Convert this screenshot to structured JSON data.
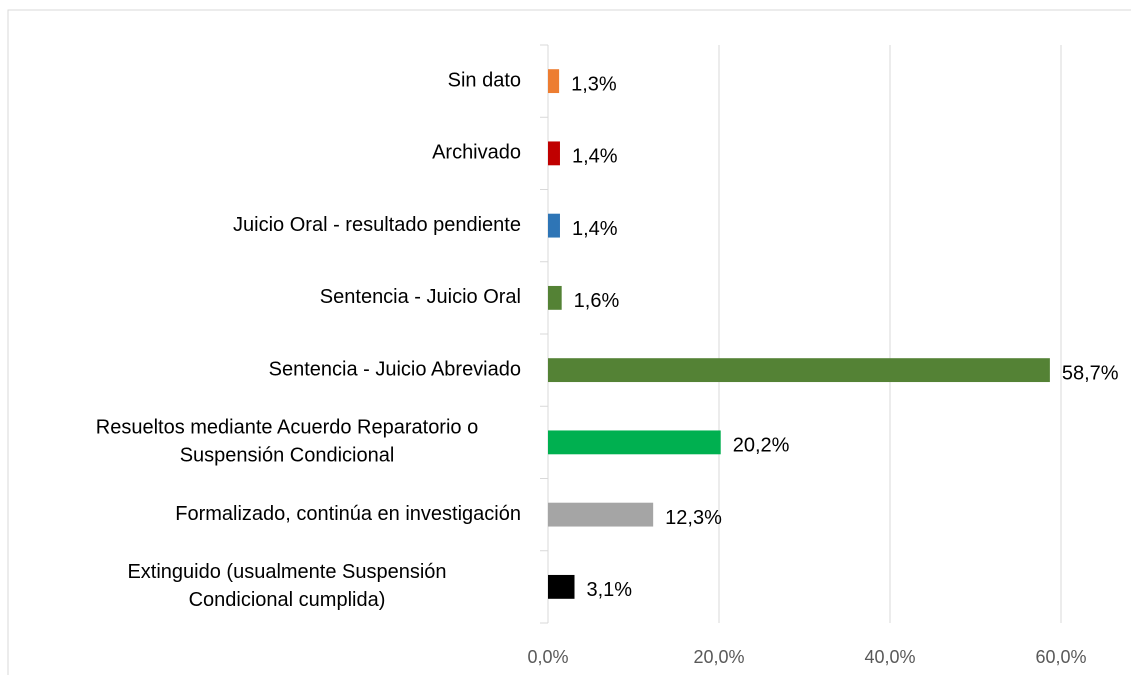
{
  "chart_data": {
    "type": "hbar",
    "categories": [
      "Sin dato",
      "Archivado",
      "Juicio Oral - resultado pendiente",
      "Sentencia - Juicio Oral",
      "Sentencia - Juicio Abreviado",
      "Resueltos mediante Acuerdo Reparatorio o\nSuspensión Condicional",
      "Formalizado, continúa en investigación",
      "Extinguido (usualmente Suspensión\nCondicional cumplida)"
    ],
    "values": [
      1.3,
      1.4,
      1.4,
      1.6,
      58.7,
      20.2,
      12.3,
      3.1
    ],
    "value_labels": [
      "1,3%",
      "1,4%",
      "1,4%",
      "1,6%",
      "58,7%",
      "20,2%",
      "12,3%",
      "3,1%"
    ],
    "colors": [
      "#ed7d31",
      "#c00000",
      "#2e75b6",
      "#548235",
      "#548235",
      "#00b050",
      "#a5a5a5",
      "#000000"
    ],
    "xlim": [
      0,
      60
    ],
    "xticks": [
      {
        "value": 0,
        "label": "0,0%"
      },
      {
        "value": 20,
        "label": "20,0%"
      },
      {
        "value": 40,
        "label": "40,0%"
      },
      {
        "value": 60,
        "label": "60,0%"
      }
    ],
    "grid": true
  }
}
